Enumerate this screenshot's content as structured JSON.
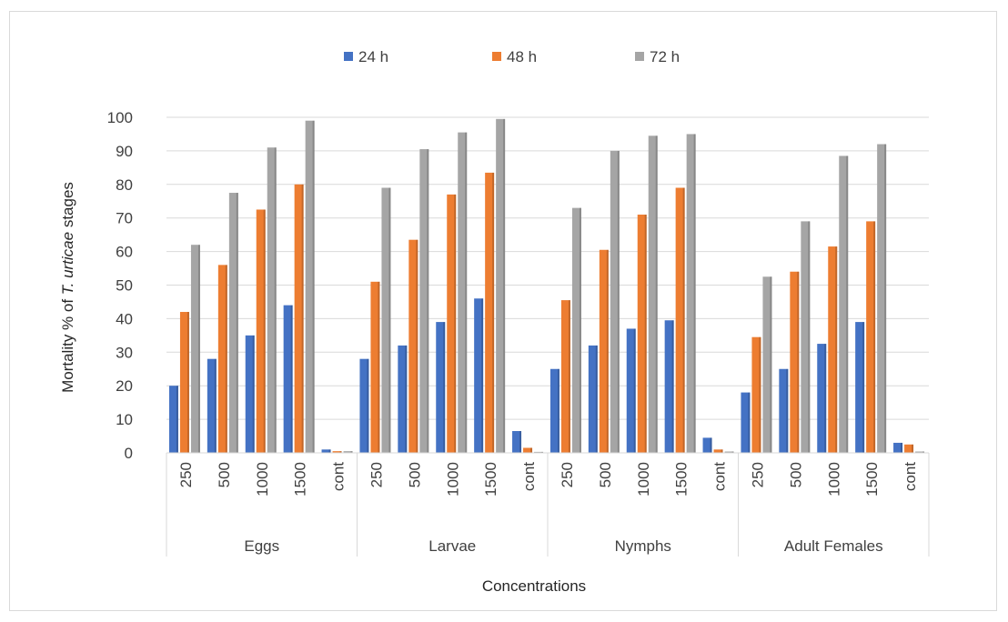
{
  "chart_data": {
    "type": "bar",
    "groups": [
      "Eggs",
      "Larvae",
      "Nymphs",
      "Adult Females"
    ],
    "concentrations": [
      "250",
      "500",
      "1000",
      "1500",
      "cont"
    ],
    "xlabel": "Concentrations",
    "ylabel_prefix": "Mortality % of ",
    "ylabel_italic": "T. urticae",
    "ylabel_suffix": " stages",
    "ylim": [
      0,
      100
    ],
    "yticks": [
      0,
      10,
      20,
      30,
      40,
      50,
      60,
      70,
      80,
      90,
      100
    ],
    "grid": true,
    "legend_position": "top",
    "series": [
      {
        "name": "24 h",
        "color": "#4472c4",
        "values": [
          20,
          28,
          35,
          44,
          1,
          28,
          32,
          39,
          46,
          6.5,
          25,
          32,
          37,
          39.5,
          4.5,
          18,
          25,
          32.5,
          39,
          3
        ]
      },
      {
        "name": "48 h",
        "color": "#ed7d31",
        "values": [
          42,
          56,
          72.5,
          80,
          0.5,
          51,
          63.5,
          77,
          83.5,
          1.5,
          45.5,
          60.5,
          71,
          79,
          1,
          34.5,
          54,
          61.5,
          69,
          2.5
        ]
      },
      {
        "name": "72 h",
        "color": "#a5a5a5",
        "values": [
          62,
          77.5,
          91,
          99,
          0.5,
          79,
          90.5,
          95.5,
          99.5,
          0.3,
          73,
          90,
          94.5,
          95,
          0.4,
          52.5,
          69,
          88.5,
          92,
          0.4
        ]
      }
    ]
  }
}
